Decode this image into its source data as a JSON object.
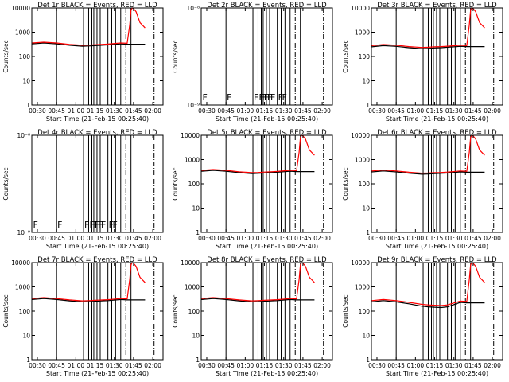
{
  "panels_common": {
    "ylabel": "Counts/sec",
    "xlabel": "Start Time (21-Feb-15 00:25:40)",
    "x_ticks": [
      "00:30",
      "00:45",
      "01:00",
      "01:15",
      "01:30",
      "01:45",
      "02:00"
    ],
    "x_tick_minutes": [
      30,
      45,
      60,
      75,
      90,
      105,
      120
    ],
    "xlim_minutes": [
      25.67,
      128
    ],
    "colors": {
      "events": "#000000",
      "lld": "#ff0000"
    }
  },
  "chart_data": [
    {
      "type": "line",
      "title": "Det 1r BLACK = Events, RED = LLD",
      "yscale": "log",
      "ylim": [
        1,
        10000
      ],
      "y_ticks": [
        "1",
        "10",
        "100",
        "1000",
        "10000"
      ],
      "x_minutes": [
        26,
        35,
        45,
        55,
        65,
        70,
        75,
        80,
        85,
        95,
        100,
        102,
        103,
        104,
        105,
        107,
        110,
        114
      ],
      "series": [
        {
          "name": "Events",
          "values": [
            330,
            360,
            330,
            290,
            265,
            270,
            280,
            290,
            300,
            330,
            320,
            320,
            320,
            320,
            320,
            320,
            320,
            320
          ]
        },
        {
          "name": "LLD",
          "values": [
            360,
            390,
            360,
            315,
            290,
            295,
            305,
            315,
            325,
            360,
            350,
            2000,
            8000,
            10000,
            9500,
            7000,
            2500,
            1500
          ]
        }
      ],
      "vlines_solid": [
        45,
        66,
        70,
        72.5,
        74,
        76.5,
        79,
        85,
        88,
        91,
        95,
        103
      ],
      "vlines_dashdot": [
        99,
        121
      ]
    },
    {
      "type": "line",
      "title": "Det 2r BLACK = Events, RED = LLD",
      "yscale": "log",
      "ylim": [
        1e-09,
        1e-08
      ],
      "y_ticks": [
        "10⁻⁹",
        "10⁻⁸"
      ],
      "x_minutes": [],
      "series": [],
      "vlines_solid": [
        45,
        66,
        70,
        72.5,
        74,
        76.5,
        79,
        85,
        88,
        91,
        95,
        103
      ],
      "vlines_dashdot": [
        99,
        121
      ],
      "annotations": [
        "F",
        "F",
        "F",
        "F",
        "F",
        "F",
        "F",
        "F",
        "F",
        "F"
      ],
      "annotation_x_minutes": [
        26,
        45,
        66,
        70,
        72.5,
        74,
        76.5,
        79,
        85,
        88
      ]
    },
    {
      "type": "line",
      "title": "Det 3r BLACK = Events, RED = LLD",
      "yscale": "log",
      "ylim": [
        1,
        10000
      ],
      "y_ticks": [
        "1",
        "10",
        "100",
        "1000",
        "10000"
      ],
      "x_minutes": [
        26,
        35,
        45,
        55,
        65,
        70,
        75,
        80,
        85,
        95,
        100,
        102,
        103,
        104,
        105,
        107,
        110,
        114
      ],
      "series": [
        {
          "name": "Events",
          "values": [
            250,
            280,
            260,
            230,
            210,
            215,
            225,
            230,
            240,
            260,
            255,
            255,
            255,
            255,
            255,
            255,
            255,
            255
          ]
        },
        {
          "name": "LLD",
          "values": [
            280,
            310,
            290,
            255,
            235,
            240,
            250,
            255,
            265,
            290,
            280,
            2000,
            8000,
            10000,
            9500,
            7000,
            2500,
            1500
          ]
        }
      ],
      "vlines_solid": [
        45,
        66,
        70,
        72.5,
        74,
        76.5,
        79,
        85,
        88,
        91,
        95,
        103
      ],
      "vlines_dashdot": [
        99,
        121
      ]
    },
    {
      "type": "line",
      "title": "Det 4r BLACK = Events, RED = LLD",
      "yscale": "log",
      "ylim": [
        1e-09,
        1e-08
      ],
      "y_ticks": [
        "10⁻⁹",
        "10⁻⁸"
      ],
      "x_minutes": [],
      "series": [],
      "vlines_solid": [
        45,
        66,
        70,
        72.5,
        74,
        76.5,
        79,
        85,
        88,
        91,
        95,
        103
      ],
      "vlines_dashdot": [
        99,
        121
      ],
      "annotations": [
        "F",
        "F",
        "F",
        "F",
        "F",
        "F",
        "F",
        "F",
        "F",
        "F"
      ],
      "annotation_x_minutes": [
        26,
        45,
        66,
        70,
        72.5,
        74,
        76.5,
        79,
        85,
        88
      ]
    },
    {
      "type": "line",
      "title": "Det 5r BLACK = Events, RED = LLD",
      "yscale": "log",
      "ylim": [
        1,
        10000
      ],
      "y_ticks": [
        "1",
        "10",
        "100",
        "1000",
        "10000"
      ],
      "x_minutes": [
        26,
        35,
        45,
        55,
        65,
        70,
        75,
        80,
        85,
        95,
        100,
        102,
        103,
        104,
        105,
        107,
        110,
        114
      ],
      "series": [
        {
          "name": "Events",
          "values": [
            330,
            360,
            330,
            290,
            265,
            270,
            280,
            290,
            300,
            330,
            320,
            320,
            320,
            320,
            320,
            320,
            320,
            320
          ]
        },
        {
          "name": "LLD",
          "values": [
            360,
            390,
            360,
            315,
            290,
            295,
            305,
            315,
            325,
            360,
            350,
            2000,
            8000,
            10000,
            9500,
            7000,
            2500,
            1500
          ]
        }
      ],
      "vlines_solid": [
        45,
        66,
        70,
        72.5,
        74,
        76.5,
        79,
        85,
        88,
        91,
        95,
        103
      ],
      "vlines_dashdot": [
        99,
        121
      ]
    },
    {
      "type": "line",
      "title": "Det 6r BLACK = Events, RED = LLD",
      "yscale": "log",
      "ylim": [
        1,
        10000
      ],
      "y_ticks": [
        "1",
        "10",
        "100",
        "1000",
        "10000"
      ],
      "x_minutes": [
        26,
        35,
        45,
        55,
        65,
        70,
        75,
        80,
        85,
        95,
        100,
        102,
        103,
        104,
        105,
        107,
        110,
        114
      ],
      "series": [
        {
          "name": "Events",
          "values": [
            310,
            340,
            310,
            275,
            250,
            255,
            265,
            270,
            280,
            310,
            300,
            300,
            300,
            300,
            300,
            300,
            300,
            300
          ]
        },
        {
          "name": "LLD",
          "values": [
            340,
            370,
            340,
            300,
            275,
            280,
            290,
            295,
            305,
            340,
            330,
            2000,
            8000,
            10000,
            9500,
            7000,
            2500,
            1500
          ]
        }
      ],
      "vlines_solid": [
        45,
        66,
        70,
        72.5,
        74,
        76.5,
        79,
        85,
        88,
        91,
        95,
        103
      ],
      "vlines_dashdot": [
        99,
        121
      ]
    },
    {
      "type": "line",
      "title": "Det 7r BLACK = Events, RED = LLD",
      "yscale": "log",
      "ylim": [
        1,
        10000
      ],
      "y_ticks": [
        "1",
        "10",
        "100",
        "1000",
        "10000"
      ],
      "x_minutes": [
        26,
        35,
        45,
        55,
        65,
        70,
        75,
        80,
        85,
        95,
        100,
        102,
        103,
        104,
        105,
        107,
        110,
        114
      ],
      "series": [
        {
          "name": "Events",
          "values": [
            300,
            330,
            300,
            265,
            240,
            245,
            255,
            262,
            270,
            300,
            290,
            290,
            290,
            290,
            290,
            290,
            290,
            290
          ]
        },
        {
          "name": "LLD",
          "values": [
            330,
            360,
            330,
            290,
            265,
            270,
            280,
            288,
            297,
            330,
            320,
            2000,
            8000,
            10000,
            9500,
            7000,
            2500,
            1500
          ]
        }
      ],
      "vlines_solid": [
        45,
        66,
        70,
        72.5,
        74,
        76.5,
        79,
        85,
        88,
        91,
        95,
        103
      ],
      "vlines_dashdot": [
        99,
        121
      ]
    },
    {
      "type": "line",
      "title": "Det 8r BLACK = Events, RED = LLD",
      "yscale": "log",
      "ylim": [
        1,
        10000
      ],
      "y_ticks": [
        "1",
        "10",
        "100",
        "1000",
        "10000"
      ],
      "x_minutes": [
        26,
        35,
        45,
        55,
        65,
        70,
        75,
        80,
        85,
        95,
        100,
        102,
        103,
        104,
        105,
        107,
        110,
        114
      ],
      "series": [
        {
          "name": "Events",
          "values": [
            300,
            330,
            300,
            265,
            240,
            245,
            255,
            262,
            270,
            300,
            290,
            290,
            290,
            290,
            290,
            290,
            290,
            290
          ]
        },
        {
          "name": "LLD",
          "values": [
            330,
            360,
            330,
            290,
            265,
            270,
            280,
            288,
            297,
            330,
            320,
            2000,
            8000,
            10000,
            9500,
            7000,
            2500,
            1500
          ]
        }
      ],
      "vlines_solid": [
        45,
        66,
        70,
        72.5,
        74,
        76.5,
        79,
        85,
        88,
        91,
        95,
        103
      ],
      "vlines_dashdot": [
        99,
        121
      ]
    },
    {
      "type": "line",
      "title": "Det 9r BLACK = Events, RED = LLD",
      "yscale": "log",
      "ylim": [
        1,
        10000
      ],
      "y_ticks": [
        "1",
        "10",
        "100",
        "1000",
        "10000"
      ],
      "x_minutes": [
        26,
        35,
        45,
        55,
        65,
        70,
        75,
        80,
        85,
        95,
        100,
        102,
        103,
        104,
        105,
        107,
        110,
        114
      ],
      "series": [
        {
          "name": "Events",
          "values": [
            240,
            270,
            240,
            200,
            160,
            150,
            145,
            140,
            150,
            230,
            220,
            220,
            220,
            220,
            220,
            220,
            220,
            220
          ]
        },
        {
          "name": "LLD",
          "values": [
            270,
            300,
            270,
            230,
            190,
            180,
            175,
            170,
            180,
            260,
            250,
            2000,
            8000,
            10000,
            9500,
            7000,
            2500,
            1500
          ]
        }
      ],
      "vlines_solid": [
        45,
        66,
        70,
        72.5,
        74,
        76.5,
        79,
        85,
        88,
        91,
        95,
        103
      ],
      "vlines_dashdot": [
        99,
        121
      ]
    }
  ]
}
